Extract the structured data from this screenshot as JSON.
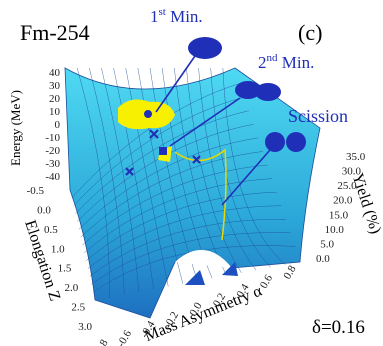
{
  "figure": {
    "nucleus": "Fm-254",
    "panel": "(c)",
    "first_min": {
      "number": "1",
      "suffix": "st",
      "text": " Min."
    },
    "second_min": {
      "number": "2",
      "suffix": "nd",
      "text": " Min."
    },
    "scission": "Scission",
    "energy_axis": {
      "label": "Energy (MeV)",
      "ticks": [
        "40",
        "30",
        "20",
        "10",
        "0",
        "-10",
        "-20",
        "-30",
        "-40"
      ]
    },
    "elongation_axis": {
      "label": "Elongation Z",
      "ticks": [
        "-0.5",
        "0.0",
        "0.5",
        "1.0",
        "1.5",
        "2.0",
        "2.5",
        "3.0"
      ]
    },
    "asymmetry_axis": {
      "label": "Mass Asymmetry α",
      "ticks": [
        "-0.8",
        "-0.6",
        "-0.4",
        "-0.2",
        "0.0",
        "0.2",
        "0.4",
        "0.6",
        "0.8"
      ]
    },
    "yield_axis": {
      "label": "Yield (%)",
      "ticks": [
        "35.0",
        "30.0",
        "25.0",
        "20.0",
        "15.0",
        "10.0",
        "5.0",
        "0.0"
      ]
    },
    "delta": "δ=0.16"
  }
}
